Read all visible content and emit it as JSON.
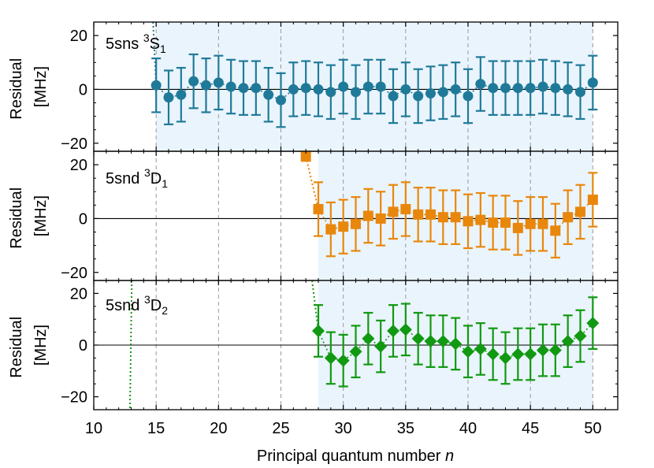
{
  "chart_data": {
    "type": "scatter",
    "xlabel": "Principal quantum number",
    "xlabel_var": "n",
    "x_ticks": [
      10,
      15,
      20,
      25,
      30,
      35,
      40,
      45,
      50
    ],
    "xlim": [
      10,
      52
    ],
    "y_ticks": [
      -20,
      0,
      20
    ],
    "panels": [
      {
        "id": "s1",
        "series_name": "5sns 3S1",
        "label_main": "5sns ",
        "label_sup": "3",
        "label_base": "S",
        "label_sub": "1",
        "ylabel_line1": "Residual",
        "ylabel_line2": "[MHz]",
        "ylim": [
          -23,
          25
        ],
        "color": "#1f7a99",
        "marker": "circle",
        "shade_range": [
          15,
          50
        ],
        "x": [
          15,
          16,
          17,
          18,
          19,
          20,
          21,
          22,
          23,
          24,
          25,
          26,
          27,
          28,
          29,
          30,
          31,
          32,
          33,
          34,
          35,
          36,
          37,
          38,
          39,
          40,
          41,
          42,
          43,
          44,
          45,
          46,
          47,
          48,
          49,
          50
        ],
        "y": [
          1.5,
          -3,
          -2,
          3,
          1.5,
          2.5,
          1,
          0.5,
          0.5,
          -2,
          -4,
          0,
          0.5,
          0,
          -1,
          1,
          -1,
          1,
          1,
          -2.5,
          0,
          -2.5,
          -1.5,
          -1,
          0,
          -2.5,
          2,
          0.5,
          0.5,
          0.5,
          0.5,
          1,
          0.5,
          0,
          -1,
          2.5
        ],
        "err": [
          10,
          10,
          10,
          10,
          10,
          10,
          10,
          10,
          10,
          10,
          10,
          10,
          10,
          10,
          10,
          10,
          10,
          10,
          10,
          10,
          10,
          10,
          10,
          10,
          10,
          10,
          10,
          10,
          10,
          10,
          10,
          10,
          10,
          10,
          10,
          10
        ],
        "trend_in": [
          [
            14.75,
            25
          ],
          [
            15,
            1.5
          ]
        ]
      },
      {
        "id": "d1",
        "series_name": "5snd 3D1",
        "label_main": "5snd ",
        "label_sup": "3",
        "label_base": "D",
        "label_sub": "1",
        "ylabel_line1": "Residual",
        "ylabel_line2": "[MHz]",
        "ylim": [
          -23,
          25
        ],
        "color": "#e8870c",
        "marker": "square",
        "shade_range": [
          28,
          50
        ],
        "x": [
          27,
          28,
          29,
          30,
          31,
          32,
          33,
          34,
          35,
          36,
          37,
          38,
          39,
          40,
          41,
          42,
          43,
          44,
          45,
          46,
          47,
          48,
          49,
          50
        ],
        "y": [
          23,
          3.5,
          -4,
          -3,
          -2,
          1,
          0,
          2.5,
          3.5,
          1.5,
          1.5,
          0.5,
          0.5,
          -1,
          -0.5,
          -1.5,
          -1.5,
          -3.5,
          -2,
          -2,
          -4.5,
          0.5,
          2.5,
          7
        ],
        "err": [
          0,
          10,
          10,
          10,
          10,
          10,
          10,
          10,
          10,
          10,
          10,
          10,
          10,
          10,
          10,
          10,
          10,
          10,
          10,
          10,
          10,
          10,
          10,
          10
        ],
        "trend_in": [
          [
            27,
            23
          ],
          [
            28,
            3.5
          ]
        ]
      },
      {
        "id": "d2",
        "series_name": "5snd 3D2",
        "label_main": "5snd ",
        "label_sup": "3",
        "label_base": "D",
        "label_sub": "2",
        "ylabel_line1": "Residual",
        "ylabel_line2": "[MHz]",
        "ylim": [
          -25,
          25
        ],
        "color": "#119911",
        "marker": "diamond",
        "shade_range": [
          28,
          50
        ],
        "x": [
          28,
          29,
          30,
          31,
          32,
          33,
          34,
          35,
          36,
          37,
          38,
          39,
          40,
          41,
          42,
          43,
          44,
          45,
          46,
          47,
          48,
          49,
          50
        ],
        "y": [
          5.5,
          -5,
          -6,
          -2.5,
          2.5,
          -0.5,
          5.5,
          6,
          2.5,
          1.5,
          1.5,
          0.5,
          -2.5,
          -1.5,
          -3.5,
          -5,
          -3.5,
          -3.5,
          -2,
          -2,
          1.5,
          3.5,
          8.5
        ],
        "err": [
          10,
          10,
          10,
          10,
          10,
          10,
          10,
          10,
          10,
          10,
          10,
          10,
          10,
          10,
          10,
          10,
          10,
          10,
          10,
          10,
          10,
          10,
          10
        ],
        "trend_in": [
          [
            27.5,
            25
          ],
          [
            28,
            5.5
          ]
        ],
        "extra_line": [
          [
            13.05,
            25
          ],
          [
            12.9,
            -25
          ]
        ]
      }
    ]
  }
}
